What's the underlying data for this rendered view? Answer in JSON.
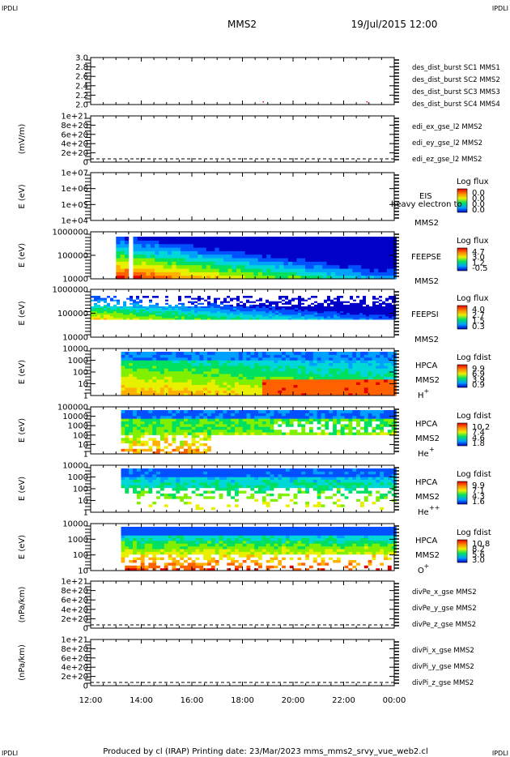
{
  "corner_tl": "IPDLI",
  "corner_tr": "IPDLI",
  "corner_bl": "IPDLI",
  "corner_br": "IPDLI",
  "header": {
    "spacecraft": "MMS2",
    "datetime": "19/Jul/2015 12:00"
  },
  "footer": "Produced by cl (IRAP)   Printing date: 23/Mar/2023   mms_mms2_srvy_vue_web2.cl",
  "colors": {
    "sc1": "#0000cc",
    "sc2": "#cc00cc",
    "sc3": "#dd0000",
    "sc4": "#00bb00",
    "x": "#dd0000",
    "y": "#00bb00",
    "z": "#0000cc"
  },
  "chart_data": {
    "type": "heatmap",
    "x_ticks": [
      "12:00",
      "14:00",
      "16:00",
      "18:00",
      "20:00",
      "22:00",
      "00:00"
    ],
    "x_range_hours": [
      12,
      24
    ],
    "panels": [
      {
        "id": "p1",
        "type": "line",
        "ylabel": "",
        "yticks": [
          "3.0",
          "2.8",
          "2.6",
          "2.4",
          "2.2",
          "2.0"
        ],
        "legend": [
          "des_dist_burst SC1 MMS1",
          "des_dist_burst SC2 MMS2",
          "des_dist_burst SC3 MMS3",
          "des_dist_burst SC4 MMS4"
        ],
        "legend_colors": [
          "sc1",
          "sc2",
          "sc3",
          "sc4"
        ],
        "marks": [
          {
            "time": 18.8,
            "value": 2.0
          },
          {
            "time": 22.9,
            "value": 2.0
          }
        ]
      },
      {
        "id": "p2",
        "type": "line",
        "ylabel": "(mV/m)",
        "yticks": [
          "1e+21",
          "8e+20",
          "6e+20",
          "4e+20",
          "2e+20",
          "0"
        ],
        "legend": [
          "edi_ex_gse_l2 MMS2",
          "edi_ey_gse_l2 MMS2",
          "edi_ez_gse_l2 MMS2"
        ],
        "legend_colors": [
          "x",
          "y",
          "z"
        ]
      },
      {
        "id": "p3",
        "type": "spectrogram",
        "ylabel": "E (eV)",
        "yticks": [
          "1e+07",
          "1e+06",
          "1e+05",
          "1e+04"
        ],
        "right_labels": [
          "EIS",
          "heavy electron to",
          "MMS2"
        ],
        "cbar_title": "Log flux",
        "cbar_ticks": [
          "0.0",
          "0.0",
          "0.0",
          "0.0"
        ]
      },
      {
        "id": "p4",
        "type": "spectrogram",
        "ylabel": "E (eV)",
        "yticks": [
          "1000000",
          "100000",
          "10000"
        ],
        "right_labels": [
          "FEEPSE",
          "MMS2"
        ],
        "cbar_title": "Log flux",
        "cbar_ticks": [
          "4.7",
          "3.0",
          "1.2",
          "-0.5"
        ]
      },
      {
        "id": "p5",
        "type": "spectrogram",
        "ylabel": "E (eV)",
        "yticks": [
          "1000000",
          "100000",
          "10000"
        ],
        "right_labels": [
          "FEEPSI",
          "MMS2"
        ],
        "cbar_title": "Log flux",
        "cbar_ticks": [
          "4.0",
          "2.7",
          "1.5",
          "0.3"
        ]
      },
      {
        "id": "p6",
        "type": "spectrogram",
        "ylabel": "E (eV)",
        "yticks": [
          "10000",
          "1000",
          "100",
          "10",
          "1"
        ],
        "right_labels": [
          "HPCA",
          "MMS2",
          "H",
          "+"
        ],
        "cbar_title": "Log fdist",
        "cbar_ticks": [
          "9.9",
          "6.9",
          "3.9",
          "0.9"
        ]
      },
      {
        "id": "p7",
        "type": "spectrogram",
        "ylabel": "E (eV)",
        "yticks": [
          "100000",
          "10000",
          "1000",
          "100",
          "10",
          "1"
        ],
        "right_labels": [
          "HPCA",
          "MMS2",
          "He",
          "+"
        ],
        "cbar_title": "Log fdist",
        "cbar_ticks": [
          "10.2",
          "7.4",
          "4.6",
          "1.8"
        ]
      },
      {
        "id": "p8",
        "type": "spectrogram",
        "ylabel": "E (eV)",
        "yticks": [
          "10000",
          "1000",
          "100",
          "10",
          "1"
        ],
        "right_labels": [
          "HPCA",
          "MMS2",
          "He",
          "++"
        ],
        "cbar_title": "Log fdist",
        "cbar_ticks": [
          "9.9",
          "7.1",
          "4.3",
          "1.6"
        ]
      },
      {
        "id": "p9",
        "type": "spectrogram",
        "ylabel": "E (eV)",
        "yticks": [
          "10000",
          "1000",
          "100",
          "10"
        ],
        "right_labels": [
          "HPCA",
          "MMS2",
          "O",
          "+"
        ],
        "cbar_title": "Log fdist",
        "cbar_ticks": [
          "10.8",
          "8.2",
          "5.6",
          "3.0"
        ]
      },
      {
        "id": "p10",
        "type": "line",
        "ylabel": "(nPa/km)",
        "yticks": [
          "1e+21",
          "8e+20",
          "6e+20",
          "4e+20",
          "2e+20",
          "0"
        ],
        "legend": [
          "divPe_x_gse MMS2",
          "divPe_y_gse MMS2",
          "divPe_z_gse MMS2"
        ],
        "legend_colors": [
          "x",
          "y",
          "z"
        ]
      },
      {
        "id": "p11",
        "type": "line",
        "ylabel": "(nPa/km)",
        "yticks": [
          "1e+21",
          "8e+20",
          "6e+20",
          "4e+20",
          "2e+20",
          "0"
        ],
        "legend": [
          "divPi_x_gse MMS2",
          "divPi_y_gse MMS2",
          "divPi_z_gse MMS2"
        ],
        "legend_colors": [
          "x",
          "y",
          "z"
        ]
      }
    ]
  }
}
